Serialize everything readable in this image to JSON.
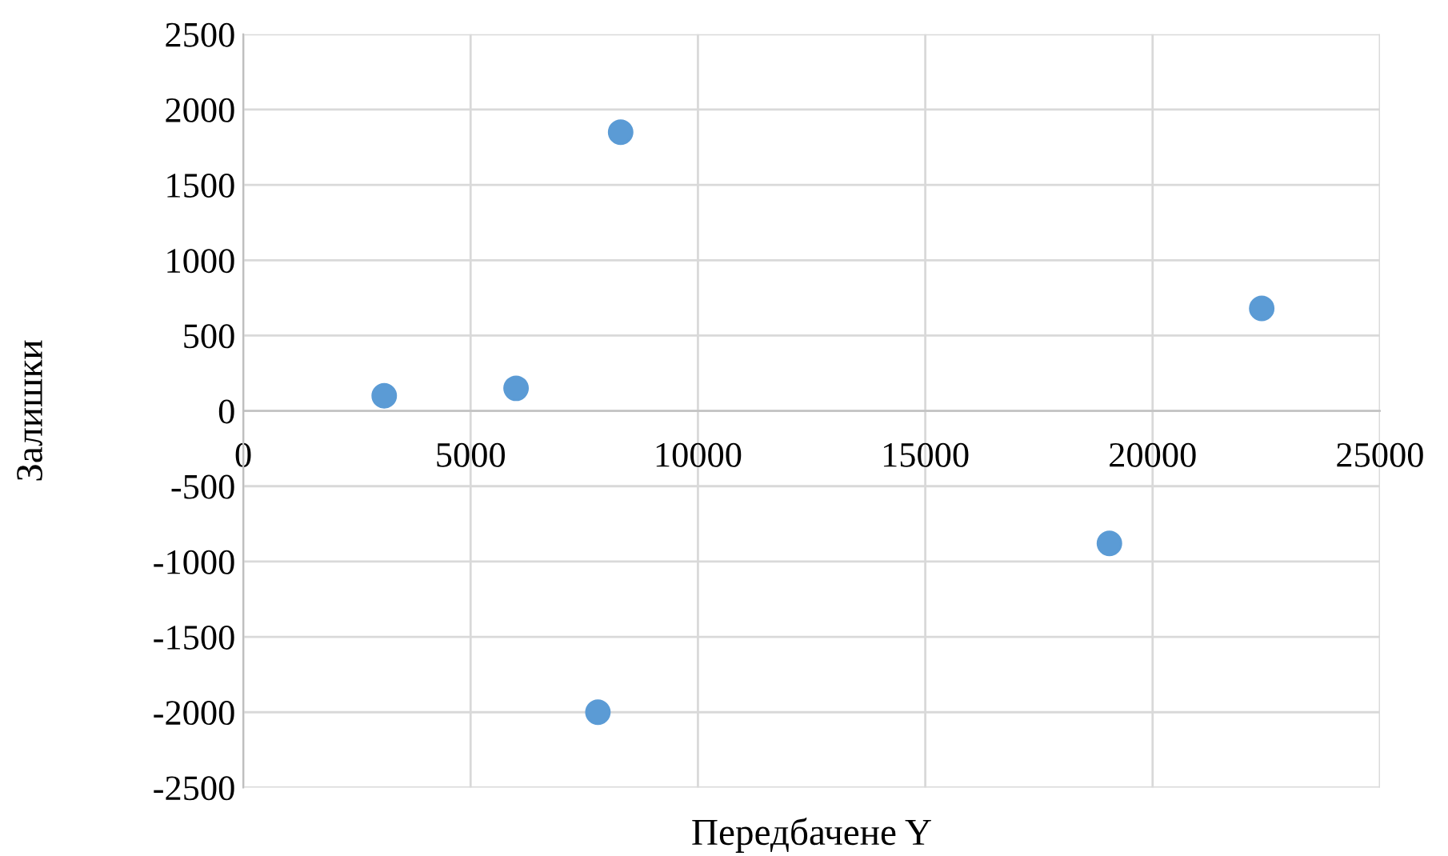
{
  "chart_data": {
    "type": "scatter",
    "xlabel": "Передбачене Y",
    "ylabel": "Залишки",
    "x": [
      3100,
      6000,
      8300,
      7800,
      19050,
      22400
    ],
    "series": [
      {
        "color": "#5b9bd5",
        "values": [
          100,
          150,
          1850,
          -2000,
          -880,
          680
        ]
      }
    ],
    "xlim": [
      0,
      25000
    ],
    "xticks": [
      0,
      5000,
      10000,
      15000,
      20000,
      25000
    ],
    "ylim": [
      -2500,
      2500
    ],
    "yticks": [
      -2500,
      -2000,
      -1500,
      -1000,
      -500,
      0,
      500,
      1000,
      1500,
      2000,
      2500
    ],
    "grid": true,
    "marker": "circle",
    "legend": false
  }
}
